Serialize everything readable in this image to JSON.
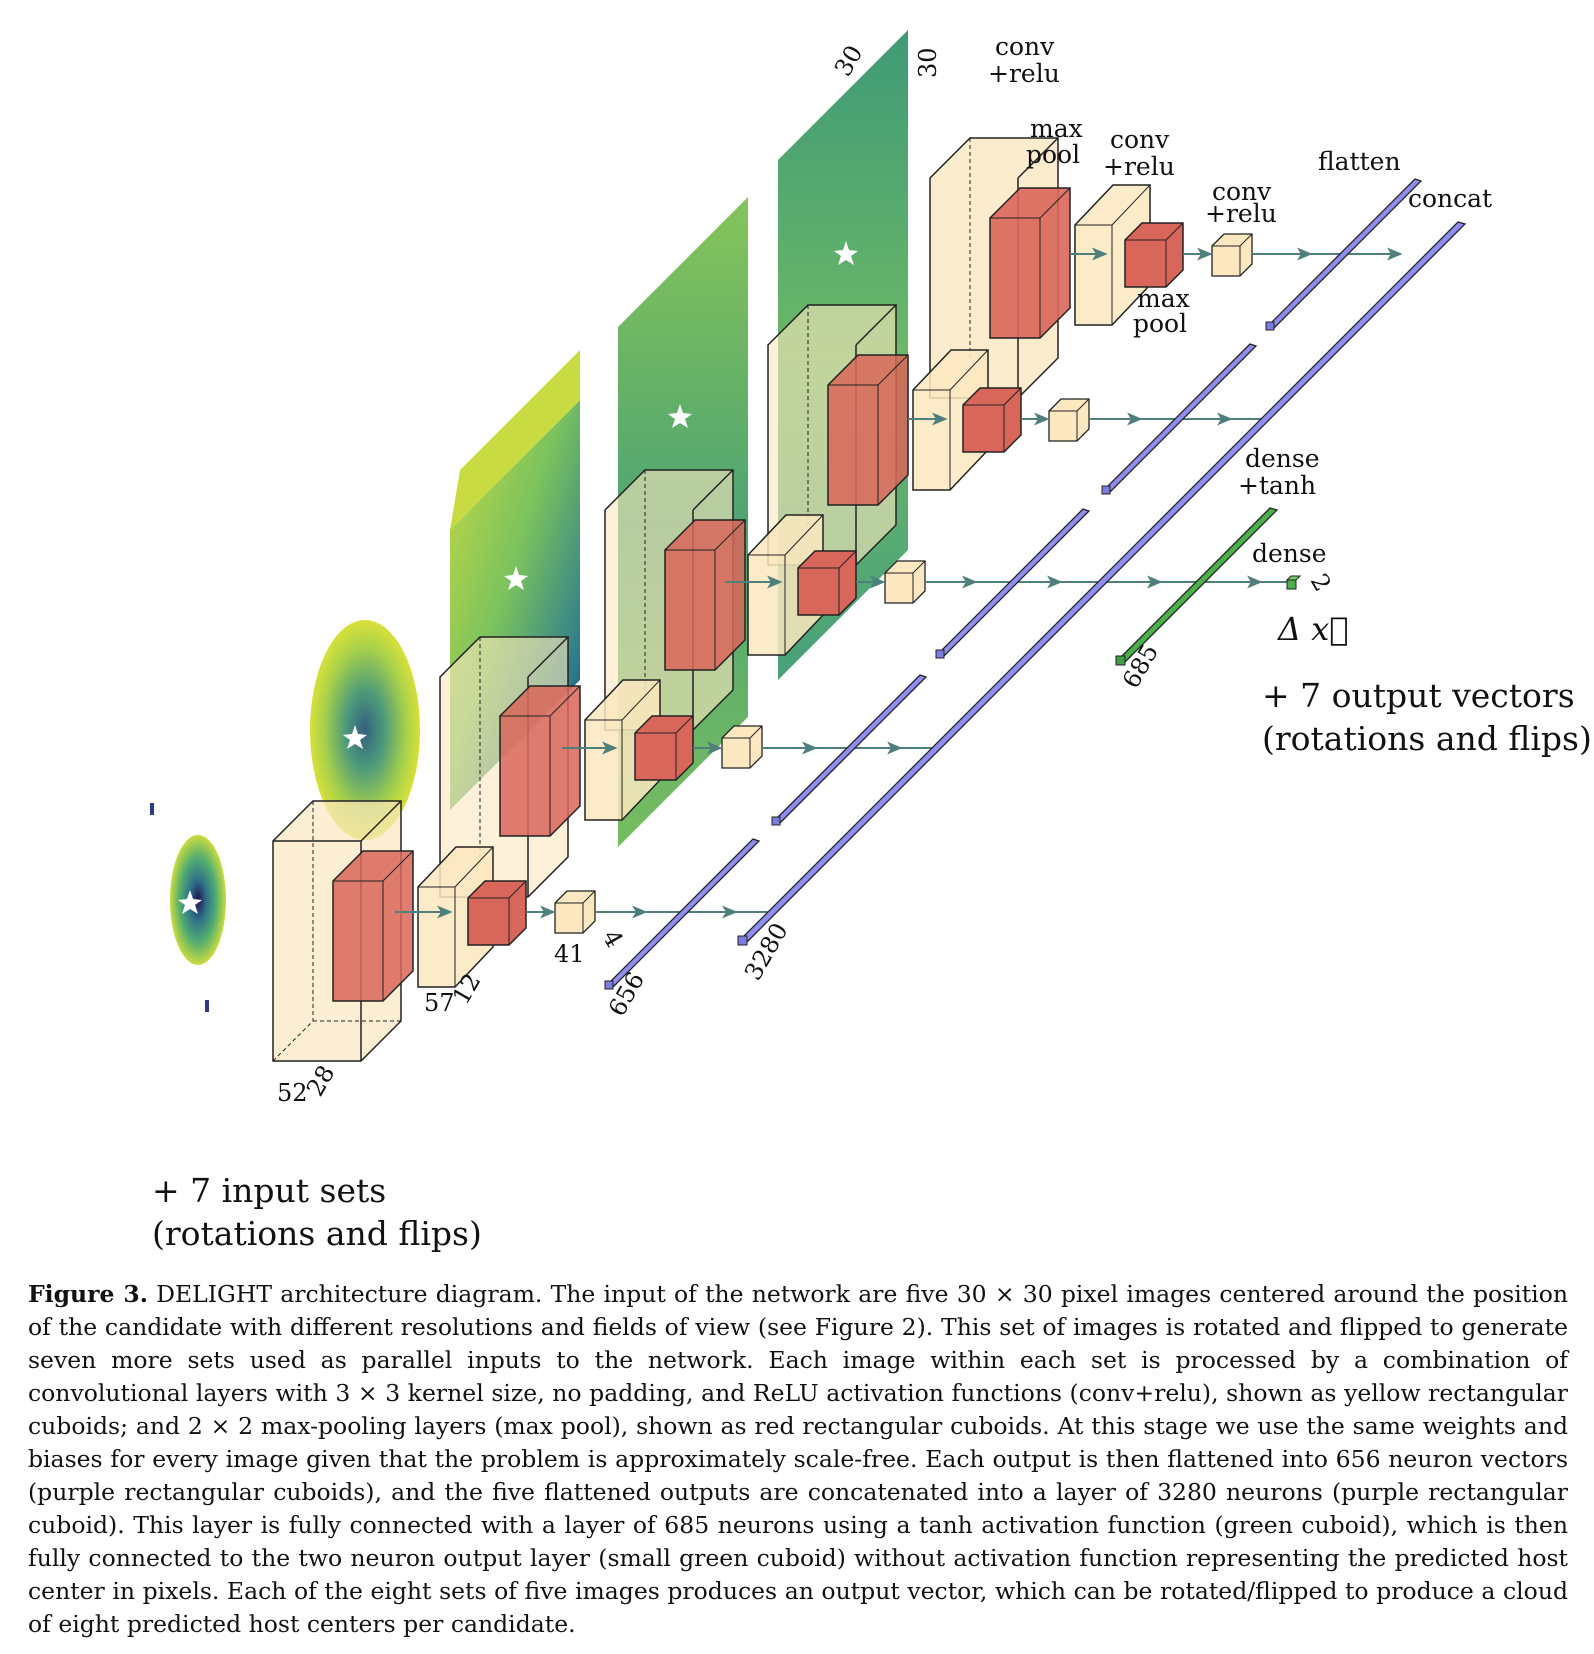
{
  "diagram": {
    "layer_labels": {
      "conv_relu": [
        "conv",
        "+relu"
      ],
      "max_pool": [
        "max",
        "pool"
      ],
      "flatten": "flatten",
      "concat": "concat",
      "dense_tanh": [
        "dense",
        "+tanh"
      ],
      "dense": "dense"
    },
    "dims": {
      "input_h": "30",
      "input_w": "30",
      "conv1_h": "52",
      "conv1_d": "28",
      "pool1_h": "57",
      "pool1_d": "12",
      "conv2_h": "41",
      "conv2_d": "4",
      "flatten": "656",
      "concat": "3280",
      "dense_tanh": "685",
      "dense_out": "2",
      "output_symbol": "Δ x⃗"
    },
    "notes": {
      "inputs": [
        "+ 7 input sets",
        "(rotations and flips)"
      ],
      "outputs": [
        "+ 7 output vectors",
        "(rotations and flips)"
      ]
    },
    "colors": {
      "conv": "#fbe7c0",
      "pool": "#d9665a",
      "flatten": "#8f8ef0",
      "dense": "#4caf4c",
      "arrow": "#4f7f7c",
      "map_green": "#5fae6a",
      "map_yellow": "#d5de3c",
      "map_dark": "#2b1c68"
    }
  },
  "caption": {
    "label": "Figure 3.",
    "text": "DELIGHT architecture diagram. The input of the network are five 30 × 30 pixel images centered around the position of the candidate with different resolutions and fields of view (see Figure 2). This set of images is rotated and flipped to generate seven more sets used as parallel inputs to the network. Each image within each set is processed by a combination of convolutional layers with 3 × 3 kernel size, no padding, and ReLU activation functions (conv+relu), shown as yellow rectangular cuboids; and 2 × 2 max-pooling layers (max pool), shown as red rectangular cuboids. At this stage we use the same weights and biases for every image given that the problem is approximately scale-free. Each output is then flattened into 656 neuron vectors (purple rectangular cuboids), and the five flattened outputs are concatenated into a layer of 3280 neurons (purple rectangular cuboid). This layer is fully connected with a layer of 685 neurons using a tanh activation function (green cuboid), which is then fully connected to the two neuron output layer (small green cuboid) without activation function representing the predicted host center in pixels. Each of the eight sets of five images produces an output vector, which can be rotated/flipped to produce a cloud of eight predicted host centers per candidate."
  }
}
